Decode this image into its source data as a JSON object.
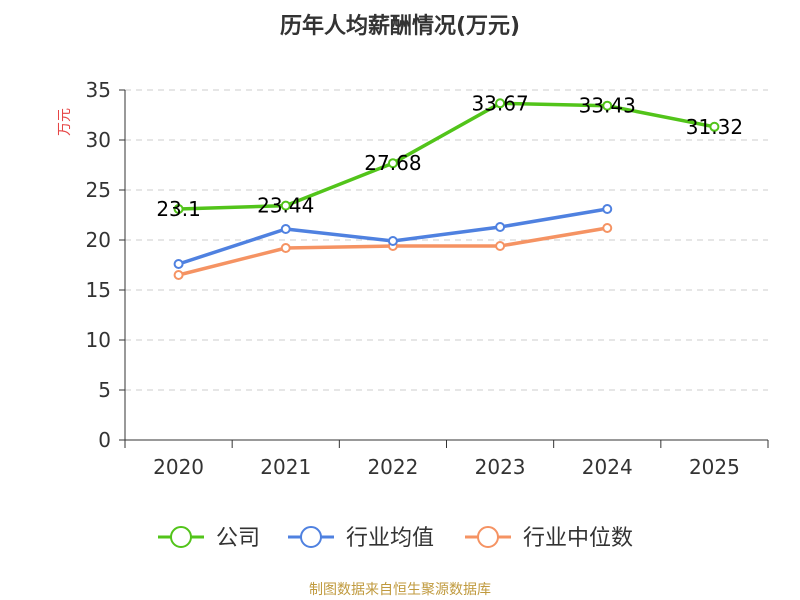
{
  "chart_data": {
    "type": "line",
    "title": "历年人均薪酬情况(万元)",
    "ylabel": "万元",
    "xlabel": "",
    "categories": [
      "2020",
      "2021",
      "2022",
      "2023",
      "2024",
      "2025"
    ],
    "ylim": [
      0,
      35
    ],
    "yticks": [
      0,
      5,
      10,
      15,
      20,
      25,
      30,
      35
    ],
    "grid": true,
    "legend_position": "bottom",
    "series": [
      {
        "name": "公司",
        "color": "#52c41a",
        "values": [
          23.1,
          23.44,
          27.68,
          33.67,
          33.43,
          31.32
        ],
        "labels": [
          "23.1",
          "23.44",
          "27.68",
          "33.67",
          "33.43",
          "31.32"
        ]
      },
      {
        "name": "行业均值",
        "color": "#4f81e0",
        "values": [
          17.6,
          21.1,
          19.9,
          21.3,
          23.1,
          null
        ]
      },
      {
        "name": "行业中位数",
        "color": "#f59363",
        "values": [
          16.5,
          19.2,
          19.4,
          19.4,
          21.2,
          null
        ]
      }
    ]
  },
  "ylabel_color": "#e64545",
  "source": {
    "text": "制图数据来自恒生聚源数据库",
    "color": "#c09a3e"
  }
}
